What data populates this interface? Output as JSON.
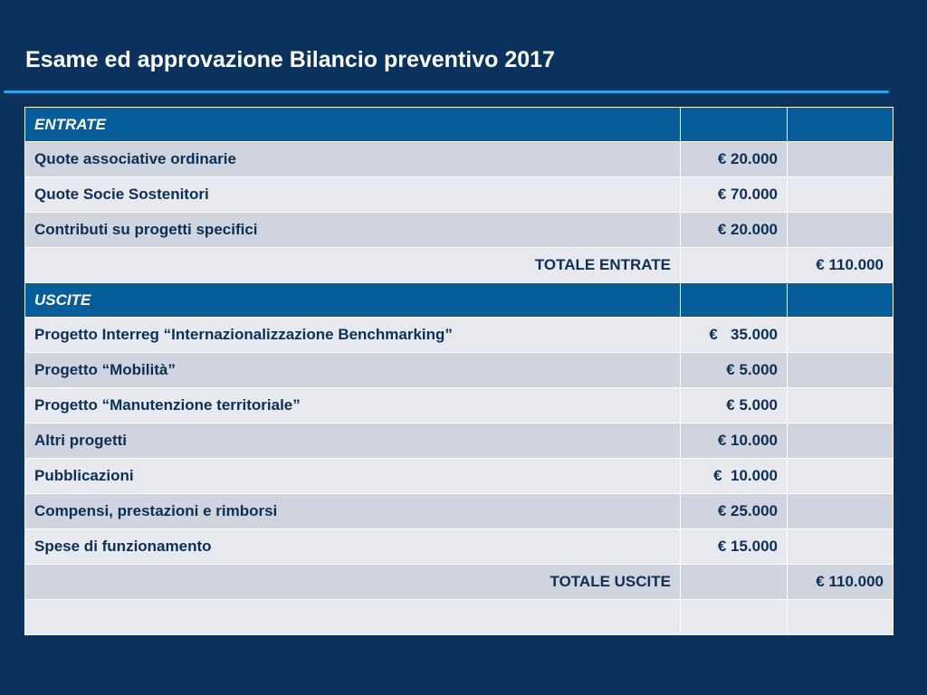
{
  "title": "Esame ed approvazione Bilancio preventivo 2017",
  "entrate": {
    "header": "ENTRATE",
    "items": [
      {
        "label": "Quote associative ordinarie",
        "amount": "€ 20.000"
      },
      {
        "label": "Quote Socie Sostenitori",
        "amount": "€ 70.000"
      },
      {
        "label": "Contributi su progetti specifici",
        "amount": "€ 20.000"
      }
    ],
    "total_label": "TOTALE ENTRATE",
    "total_amount": "€ 110.000"
  },
  "uscite": {
    "header": "USCITE",
    "items": [
      {
        "label": "Progetto Interreg “Internazionalizzazione Benchmarking”",
        "amount": "€   35.000"
      },
      {
        "label": "Progetto “Mobilità”",
        "amount": "€ 5.000"
      },
      {
        "label": "Progetto “Manutenzione territoriale”",
        "amount": "€ 5.000"
      },
      {
        "label": "Altri progetti",
        "amount": "€ 10.000"
      },
      {
        "label": "Pubblicazioni",
        "amount": "€  10.000"
      },
      {
        "label": "Compensi, prestazioni e rimborsi",
        "amount": "€ 25.000"
      },
      {
        "label": "Spese di funzionamento",
        "amount": "€ 15.000"
      }
    ],
    "total_label": "TOTALE USCITE",
    "total_amount": "€ 110.000"
  },
  "colors": {
    "background": "#0a325c",
    "section_header": "#075c9a",
    "row_dark": "#cfd4de",
    "row_light": "#e7e9ef",
    "accent_rule": "#2da4ec",
    "text": "#0b2f57"
  }
}
